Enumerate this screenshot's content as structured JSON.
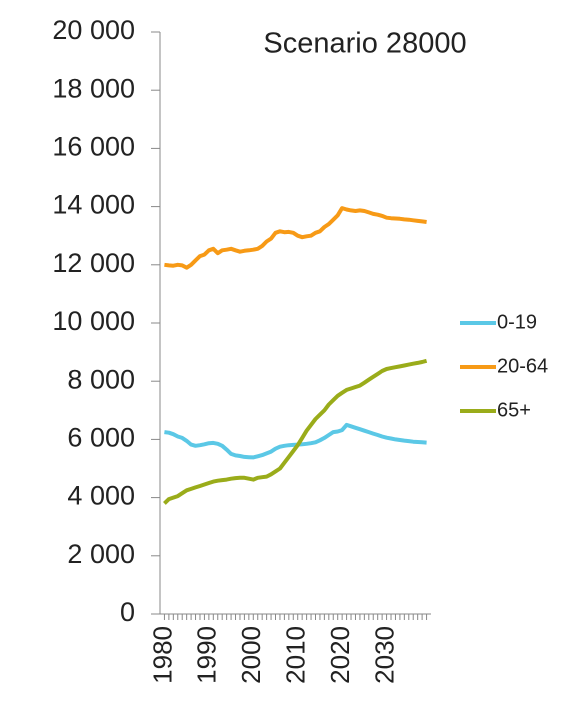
{
  "chart_data": {
    "type": "line",
    "title": "Scenario 28000",
    "x": [
      1980,
      1981,
      1982,
      1983,
      1984,
      1985,
      1986,
      1987,
      1988,
      1989,
      1990,
      1991,
      1992,
      1993,
      1994,
      1995,
      1996,
      1997,
      1998,
      1999,
      2000,
      2001,
      2002,
      2003,
      2004,
      2005,
      2006,
      2007,
      2008,
      2009,
      2010,
      2011,
      2012,
      2013,
      2014,
      2015,
      2016,
      2017,
      2018,
      2019,
      2020,
      2021,
      2022,
      2023,
      2024,
      2025,
      2026,
      2027,
      2028,
      2029,
      2030,
      2031,
      2032,
      2033,
      2034,
      2035,
      2036,
      2037,
      2038,
      2039
    ],
    "series": [
      {
        "name": "0-19",
        "color": "#5bc8e6",
        "values": [
          6250,
          6230,
          6180,
          6100,
          6050,
          5950,
          5820,
          5780,
          5800,
          5830,
          5870,
          5880,
          5850,
          5780,
          5650,
          5500,
          5450,
          5430,
          5400,
          5390,
          5380,
          5420,
          5460,
          5520,
          5580,
          5680,
          5750,
          5780,
          5800,
          5810,
          5820,
          5830,
          5850,
          5870,
          5900,
          5970,
          6050,
          6150,
          6250,
          6270,
          6320,
          6500,
          6450,
          6400,
          6350,
          6300,
          6250,
          6200,
          6150,
          6100,
          6060,
          6030,
          6000,
          5980,
          5960,
          5940,
          5920,
          5910,
          5900,
          5890
        ]
      },
      {
        "name": "20-64",
        "color": "#f79a16",
        "values": [
          12000,
          11980,
          11970,
          12000,
          11980,
          11900,
          12000,
          12150,
          12300,
          12350,
          12500,
          12550,
          12400,
          12500,
          12520,
          12550,
          12500,
          12450,
          12480,
          12500,
          12520,
          12550,
          12650,
          12800,
          12900,
          13100,
          13150,
          13120,
          13130,
          13100,
          13000,
          12950,
          12980,
          13000,
          13100,
          13150,
          13300,
          13400,
          13550,
          13700,
          13950,
          13900,
          13870,
          13850,
          13870,
          13850,
          13800,
          13750,
          13720,
          13680,
          13620,
          13600,
          13590,
          13580,
          13560,
          13550,
          13530,
          13510,
          13490,
          13470
        ]
      },
      {
        "name": "65+",
        "color": "#9aac1a",
        "values": [
          3800,
          3950,
          4000,
          4050,
          4150,
          4250,
          4300,
          4350,
          4400,
          4450,
          4500,
          4550,
          4580,
          4600,
          4620,
          4650,
          4670,
          4680,
          4680,
          4650,
          4620,
          4680,
          4700,
          4720,
          4800,
          4900,
          5000,
          5200,
          5400,
          5600,
          5800,
          6050,
          6300,
          6500,
          6700,
          6850,
          7000,
          7200,
          7350,
          7500,
          7600,
          7700,
          7750,
          7800,
          7850,
          7950,
          8050,
          8150,
          8250,
          8350,
          8420,
          8450,
          8480,
          8510,
          8540,
          8570,
          8600,
          8630,
          8660,
          8700
        ]
      }
    ],
    "xlim": [
      1979,
      2040
    ],
    "xticks": [
      1980,
      1990,
      2000,
      2010,
      2020,
      2030
    ],
    "ylim": [
      0,
      20000
    ],
    "yticks": [
      0,
      {
        "value": 2000,
        "label": "2 000"
      },
      {
        "value": 4000,
        "label": "4 000"
      },
      {
        "value": 6000,
        "label": "6 000"
      },
      {
        "value": 8000,
        "label": "8 000"
      },
      {
        "value": 10000,
        "label": "10 000"
      },
      {
        "value": 12000,
        "label": "12 000"
      },
      {
        "value": 14000,
        "label": "14 000"
      },
      {
        "value": 16000,
        "label": "16 000"
      },
      {
        "value": 18000,
        "label": "18 000"
      },
      {
        "value": 20000,
        "label": "20 000"
      }
    ],
    "grid": false,
    "legend": "right"
  }
}
